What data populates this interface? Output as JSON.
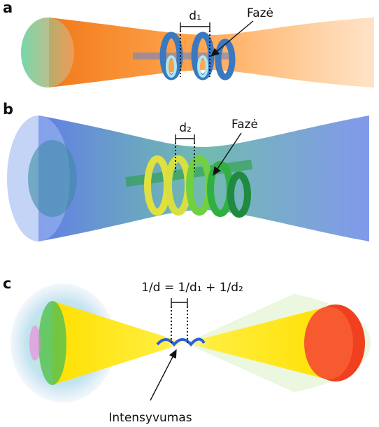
{
  "panels": [
    {
      "letter": "a",
      "spacing": "d₁",
      "phase": "Fazė"
    },
    {
      "letter": "b",
      "spacing": "d₂",
      "phase": "Fazė"
    },
    {
      "letter": "c",
      "equation": "1/d = 1/d₁ + 1/d₂",
      "intensity": "Intensyvumas"
    }
  ]
}
